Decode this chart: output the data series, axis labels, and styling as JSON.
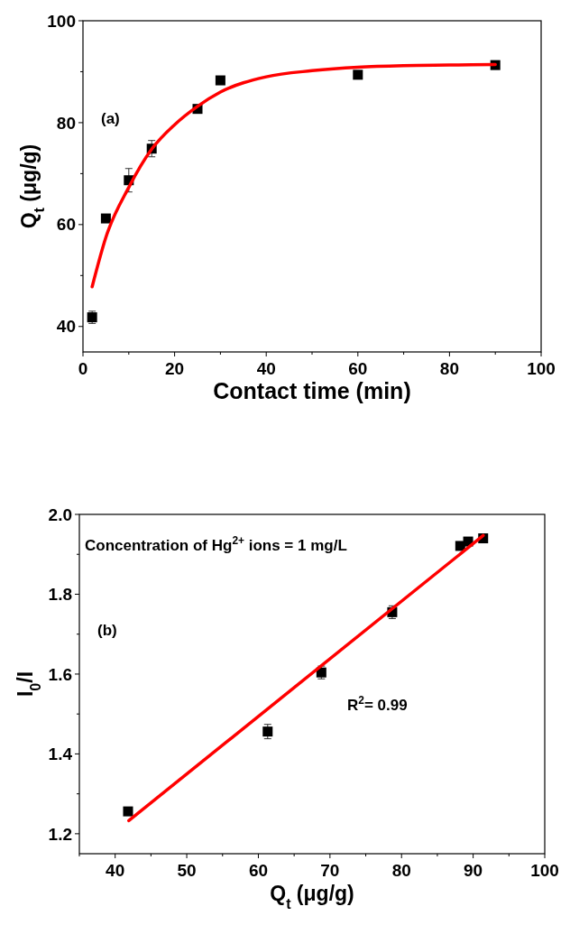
{
  "chart_data": [
    {
      "type": "scatter",
      "xlabel": "Contact time (min)",
      "ylabel": "Q$_{t}$ (μg/g)",
      "xlim": [
        0,
        100
      ],
      "ylim": [
        35,
        100
      ],
      "xticks": [
        0,
        {
          "value": 10,
          "label": null
        },
        20,
        {
          "value": 30,
          "label": null
        },
        40,
        {
          "value": 50,
          "label": null
        },
        60,
        {
          "value": 70,
          "label": null
        },
        80,
        {
          "value": 90,
          "label": null
        },
        100
      ],
      "yticks": [
        40,
        {
          "value": 50,
          "label": null
        },
        60,
        {
          "value": 70,
          "label": null
        },
        80,
        {
          "value": 90,
          "label": null
        },
        100
      ],
      "grid": false,
      "annotations": [
        "(a)"
      ],
      "series": [
        {
          "type": "scatter",
          "marker": "square",
          "color": "#000000",
          "x": [
            2,
            5,
            10,
            15,
            25,
            30,
            60,
            90
          ],
          "values": [
            41.8,
            61.2,
            68.7,
            74.9,
            82.7,
            88.3,
            89.4,
            91.3
          ],
          "errors": [
            1.2,
            null,
            2.3,
            1.6,
            null,
            null,
            null,
            null
          ]
        },
        {
          "type": "line",
          "color": "#ff0000",
          "x": [
            2,
            5,
            10,
            15,
            20,
            25,
            30,
            40,
            50,
            60,
            70,
            80,
            90
          ],
          "values": [
            47.8,
            57.5,
            67.3,
            74.8,
            79.6,
            83.2,
            86.0,
            89.0,
            90.2,
            90.9,
            91.2,
            91.3,
            91.4
          ]
        }
      ]
    },
    {
      "type": "scatter",
      "xlabel": "Q$_{t}$ (μg/g)",
      "ylabel": "I$_{0}$/I",
      "xlim": [
        35,
        100
      ],
      "ylim": [
        1.15,
        2.0
      ],
      "xticks": [
        {
          "value": 35,
          "label": null
        },
        40,
        {
          "value": 45,
          "label": null
        },
        50,
        {
          "value": 55,
          "label": null
        },
        60,
        {
          "value": 65,
          "label": null
        },
        70,
        {
          "value": 75,
          "label": null
        },
        80,
        {
          "value": 85,
          "label": null
        },
        90,
        {
          "value": 95,
          "label": null
        },
        100
      ],
      "yticks": [
        1.2,
        {
          "value": 1.3,
          "label": null
        },
        1.4,
        {
          "value": 1.5,
          "label": null
        },
        1.6,
        {
          "value": 1.7,
          "label": null
        },
        1.8,
        {
          "value": 1.9,
          "label": null
        },
        {
          "value": 2.0,
          "label": "2.0"
        }
      ],
      "grid": false,
      "annotations": [
        "Concentration of Hg$^{2+}$ ions = 1 mg/L",
        "(b)",
        "R$^{2}$= 0.99"
      ],
      "series": [
        {
          "type": "scatter",
          "marker": "square",
          "color": "#000000",
          "x": [
            41.8,
            61.3,
            68.8,
            78.7,
            88.2,
            89.3,
            91.4
          ],
          "values": [
            1.256,
            1.456,
            1.604,
            1.755,
            1.921,
            1.932,
            1.94
          ],
          "errors": [
            null,
            0.018,
            0.016,
            0.016,
            null,
            null,
            null
          ]
        },
        {
          "type": "line",
          "color": "#ff0000",
          "x": [
            41.9,
            91.4
          ],
          "values": [
            1.233,
            1.947
          ]
        }
      ]
    }
  ]
}
